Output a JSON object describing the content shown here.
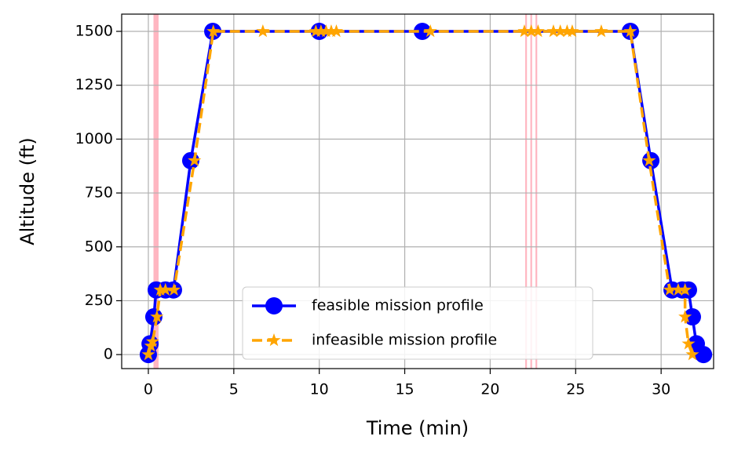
{
  "chart_data": {
    "type": "line",
    "xlabel": "Time (min)",
    "ylabel": "Altitude (ft)",
    "xlim": [
      -1.56,
      33.07
    ],
    "ylim": [
      -65,
      1580
    ],
    "xticks": [
      0,
      5,
      10,
      15,
      20,
      25,
      30
    ],
    "yticks": [
      0,
      250,
      500,
      750,
      1000,
      1250,
      1500
    ],
    "grid": true,
    "legend": "lower center",
    "spans": {
      "color": "#ffb6c1",
      "ranges": [
        [
          0.3,
          0.6
        ],
        [
          22.05,
          22.15
        ],
        [
          22.35,
          22.45
        ],
        [
          22.65,
          22.75
        ]
      ]
    },
    "series": [
      {
        "name": "feasible mission profile",
        "color": "#0000ff",
        "marker": "circle",
        "linestyle": "solid",
        "x": [
          0,
          0.1,
          0.32,
          0.46,
          1.0,
          1.47,
          2.48,
          3.77,
          10.0,
          16.03,
          28.2,
          29.4,
          30.64,
          31.24,
          31.6,
          31.83,
          32.06,
          32.48
        ],
        "values": [
          0,
          50,
          175,
          300,
          300,
          300,
          900,
          1500,
          1500,
          1500,
          1500,
          900,
          300,
          300,
          300,
          175,
          50,
          0
        ]
      },
      {
        "name": "infeasible mission profile",
        "color": "#ffa500",
        "marker": "star",
        "linestyle": "dashed",
        "x": [
          0,
          0.15,
          0.25,
          0.5,
          0.7,
          1.0,
          1.5,
          2.7,
          3.8,
          6.7,
          9.8,
          10.1,
          10.4,
          10.7,
          11.0,
          16.5,
          22.0,
          22.4,
          22.8,
          23.7,
          24.1,
          24.5,
          24.8,
          26.5,
          28.2,
          29.3,
          30.5,
          31.0,
          31.4,
          31.4,
          31.6,
          31.83
        ],
        "values": [
          0,
          40,
          60,
          175,
          300,
          300,
          300,
          900,
          1500,
          1500,
          1500,
          1500,
          1500,
          1500,
          1500,
          1500,
          1500,
          1500,
          1500,
          1500,
          1500,
          1500,
          1500,
          1500,
          1500,
          900,
          300,
          300,
          300,
          175,
          50,
          0
        ]
      }
    ]
  }
}
